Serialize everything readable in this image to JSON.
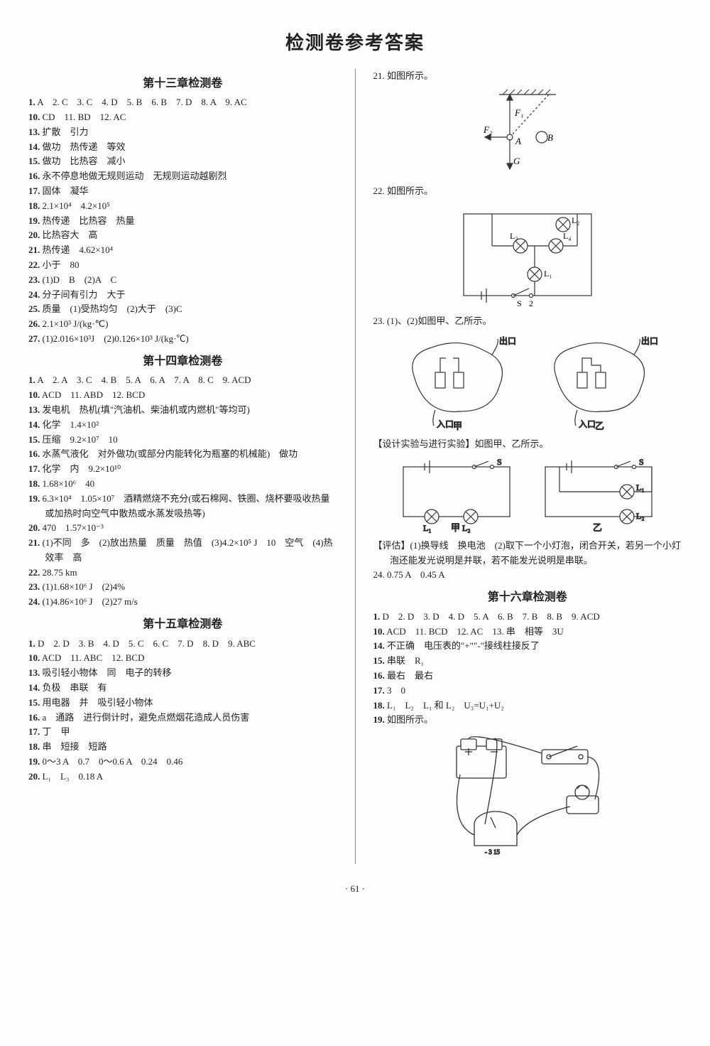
{
  "title": "检测卷参考答案",
  "page_number": "· 61 ·",
  "left": {
    "ch13": {
      "heading": "第十三章检测卷",
      "lines": [
        "1. A　2. C　3. C　4. D　5. B　6. B　7. D　8. A　9. AC",
        "10. CD　11. BD　12. AC",
        "13. 扩散　引力",
        "14. 做功　热传递　等效",
        "15. 做功　比热容　减小",
        "16. 永不停息地做无规则运动　无规则运动越剧烈",
        "17. 固体　凝华",
        "18. 2.1×10⁴　4.2×10⁵",
        "19. 热传递　比热容　热量",
        "20. 比热容大　高",
        "21. 热传递　4.62×10⁴",
        "22. 小于　80",
        "23. (1)D　B　(2)A　C",
        "24. 分子间有引力　大于",
        "25. 质量　(1)受热均匀　(2)大于　(3)C",
        "26. 2.1×10³ J/(kg·℃)",
        "27. (1)2.016×10³J　(2)0.126×10³ J/(kg·℃)"
      ]
    },
    "ch14": {
      "heading": "第十四章检测卷",
      "lines": [
        "1. A　2. A　3. C　4. B　5. A　6. A　7. A　8. C　9. ACD",
        "10. ACD　11. ABD　12. BCD",
        "13. 发电机　热机(填\"汽油机、柴油机或内燃机\"等均可)",
        "14. 化学　1.4×10²",
        "15. 压缩　9.2×10⁷　10",
        "16. 水蒸气液化　对外做功(或部分内能转化为瓶塞的机械能)　做功",
        "17. 化学　内　9.2×10¹⁰",
        "18. 1.68×10⁶　40",
        "19. 6.3×10⁴　1.05×10⁷　酒精燃烧不充分(或石棉网、铁圈、烧杯要吸收热量或加热时向空气中散热或水蒸发吸热等)",
        "20. 470　1.57×10⁻³",
        "21. (1)不同　多　(2)放出热量　质量　热值　(3)4.2×10⁵ J　10　空气　(4)热效率　高",
        "22. 28.75 km",
        "23. (1)1.68×10⁶ J　(2)4%",
        "24. (1)4.86×10⁶ J　(2)27 m/s"
      ]
    },
    "ch15": {
      "heading": "第十五章检测卷",
      "lines": [
        "1. D　2. D　3. B　4. D　5. C　6. C　7. D　8. D　9. ABC",
        "10. ACD　11. ABC　12. BCD",
        "13. 吸引轻小物体　同　电子的转移",
        "14. 负极　串联　有",
        "15. 用电器　并　吸引轻小物体",
        "16. a　通路　进行倒计时，避免点燃烟花造成人员伤害",
        "17. 丁　甲",
        "18. 串　短接　短路",
        "19. 0～3 A　0.7　0～0.6 A　0.24　0.46",
        "20. L₁　L₃　0.18 A"
      ]
    }
  },
  "right": {
    "q21": {
      "label": "21. 如图所示。"
    },
    "q22": {
      "label": "22. 如图所示。"
    },
    "q23": {
      "label": "23. (1)、(2)如图甲、乙所示。",
      "design_label": "【设计实验与进行实验】如图甲、乙所示。",
      "eval_label": "【评估】(1)换导线　换电池　(2)取下一个小灯泡，闭合开关，若另一个小灯泡还能发光说明是并联，若不能发光说明是串联。"
    },
    "q24": "24. 0.75 A　0.45 A",
    "ch16": {
      "heading": "第十六章检测卷",
      "lines": [
        "1. D　2. D　3. D　4. D　5. A　6. B　7. B　8. B　9. ACD",
        "10. ACD　11. BCD　12. AC　13. 串　相等　3U",
        "14. 不正确　电压表的\"+\"\"-\"接线柱接反了",
        "15. 串联　R₁",
        "16. 最右　最右",
        "17. 3　0",
        "18. L₁　L₂　L₁ 和 L₂　U₃=U₁+U₂",
        "19. 如图所示。"
      ]
    },
    "fig_labels": {
      "F1": "F₁",
      "F2": "F₂",
      "A": "A",
      "B": "B",
      "G": "G",
      "L1": "L₁",
      "L2": "L₂",
      "L3": "L₃",
      "L4": "L₄",
      "S": "S",
      "S2": "2",
      "outlet": "出口",
      "inlet": "入口",
      "jia": "甲",
      "yi": "乙"
    }
  },
  "colors": {
    "text": "#222222",
    "line": "#333333",
    "bg": "#fdfdfc"
  }
}
